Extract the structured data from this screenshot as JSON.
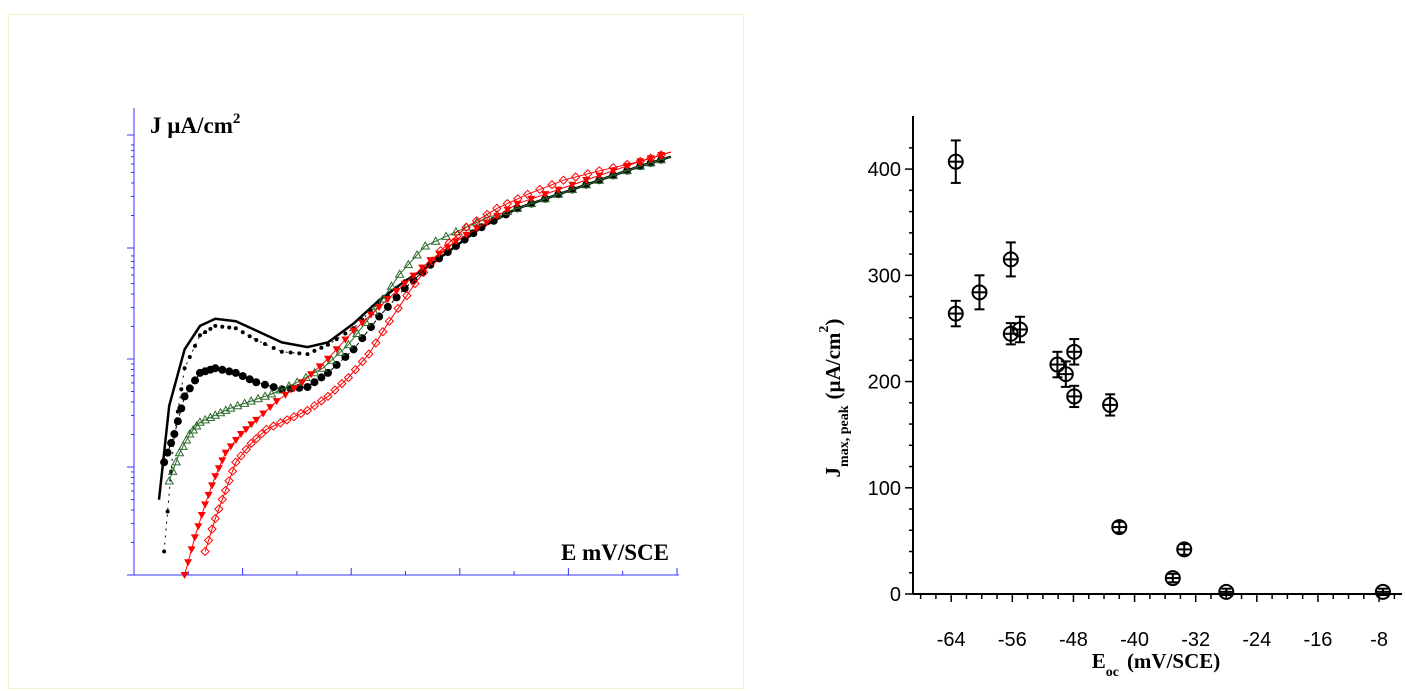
{
  "chart_data": [
    {
      "type": "line",
      "title": "",
      "ylabel_text": "J µA/cm",
      "ylabel_sup": "2",
      "xlabel": "E mV/SCE",
      "y_scale": "log",
      "tick_labels_visible": false,
      "grid": false,
      "series": [
        {
          "marker": "solid line",
          "color": "#000000",
          "x": [
            0.0,
            0.02,
            0.05,
            0.08,
            0.11,
            0.15,
            0.19,
            0.24,
            0.29,
            0.33,
            0.38,
            0.43,
            0.48,
            0.53,
            0.58,
            0.63,
            0.7,
            0.78,
            0.86,
            0.94,
            1.0
          ],
          "y": [
            0.16,
            0.36,
            0.48,
            0.53,
            0.545,
            0.54,
            0.52,
            0.495,
            0.485,
            0.495,
            0.535,
            0.585,
            0.625,
            0.66,
            0.7,
            0.74,
            0.78,
            0.81,
            0.84,
            0.87,
            0.89
          ]
        },
        {
          "marker": "small dots",
          "color": "#000000",
          "x": [
            0.01,
            0.03,
            0.05,
            0.08,
            0.11,
            0.15,
            0.19,
            0.24,
            0.29,
            0.33,
            0.38,
            0.43,
            0.48,
            0.53,
            0.58,
            0.63,
            0.7,
            0.78,
            0.86,
            0.94,
            1.0
          ],
          "y": [
            0.05,
            0.3,
            0.44,
            0.51,
            0.53,
            0.525,
            0.5,
            0.475,
            0.47,
            0.49,
            0.525,
            0.58,
            0.625,
            0.66,
            0.7,
            0.74,
            0.78,
            0.81,
            0.84,
            0.87,
            0.89
          ]
        },
        {
          "marker": "filled circle",
          "color": "#000000",
          "x": [
            0.01,
            0.03,
            0.05,
            0.08,
            0.11,
            0.15,
            0.19,
            0.24,
            0.29,
            0.33,
            0.38,
            0.43,
            0.48,
            0.53,
            0.58,
            0.63,
            0.7,
            0.78,
            0.86,
            0.94,
            1.0
          ],
          "y": [
            0.24,
            0.3,
            0.38,
            0.43,
            0.44,
            0.43,
            0.41,
            0.395,
            0.4,
            0.43,
            0.48,
            0.55,
            0.61,
            0.66,
            0.7,
            0.74,
            0.78,
            0.81,
            0.84,
            0.87,
            0.89
          ]
        },
        {
          "marker": "open triangle",
          "color": "#2d6b2d",
          "x": [
            0.02,
            0.04,
            0.06,
            0.08,
            0.11,
            0.14,
            0.18,
            0.22,
            0.27,
            0.32,
            0.37,
            0.42,
            0.47,
            0.52,
            0.58,
            0.64,
            0.7,
            0.78,
            0.86,
            0.94,
            1.0
          ],
          "y": [
            0.2,
            0.26,
            0.3,
            0.325,
            0.34,
            0.355,
            0.37,
            0.385,
            0.41,
            0.44,
            0.49,
            0.56,
            0.64,
            0.7,
            0.73,
            0.76,
            0.78,
            0.81,
            0.84,
            0.87,
            0.89
          ]
        },
        {
          "marker": "filled triangle",
          "color": "#ff0000",
          "x": [
            0.05,
            0.07,
            0.09,
            0.11,
            0.13,
            0.16,
            0.19,
            0.23,
            0.28,
            0.33,
            0.38,
            0.43,
            0.48,
            0.53,
            0.58,
            0.64,
            0.7,
            0.78,
            0.86,
            0.94,
            1.0
          ],
          "y": [
            0.0,
            0.08,
            0.15,
            0.21,
            0.26,
            0.3,
            0.33,
            0.37,
            0.41,
            0.46,
            0.52,
            0.57,
            0.62,
            0.67,
            0.71,
            0.75,
            0.79,
            0.82,
            0.85,
            0.88,
            0.9
          ]
        },
        {
          "marker": "open diamond",
          "color": "#ff0000",
          "x": [
            0.09,
            0.11,
            0.13,
            0.15,
            0.18,
            0.21,
            0.25,
            0.29,
            0.33,
            0.37,
            0.41,
            0.45,
            0.5,
            0.55,
            0.6,
            0.66,
            0.72,
            0.79,
            0.86,
            0.94,
            1.0
          ],
          "y": [
            0.05,
            0.12,
            0.18,
            0.24,
            0.28,
            0.31,
            0.33,
            0.35,
            0.38,
            0.42,
            0.47,
            0.54,
            0.62,
            0.69,
            0.74,
            0.78,
            0.81,
            0.84,
            0.86,
            0.88,
            0.9
          ]
        }
      ]
    },
    {
      "type": "scatter",
      "title": "",
      "xlabel_main": "E",
      "xlabel_sub": "oc",
      "xlabel_unit": "(mV/SCE)",
      "ylabel_main": "J",
      "ylabel_sub": "max, peak",
      "ylabel_unit": "(µA/cm",
      "ylabel_sup": "2",
      "ylabel_close": ")",
      "xlim": [
        -69,
        -5
      ],
      "ylim": [
        0,
        450
      ],
      "xticks": [
        -64,
        -56,
        -48,
        -40,
        -32,
        -24,
        -16,
        -8
      ],
      "yticks": [
        0,
        100,
        200,
        300,
        400
      ],
      "grid": false,
      "points": [
        {
          "x": -63.4,
          "y": 407,
          "err": 20
        },
        {
          "x": -63.4,
          "y": 264,
          "err": 12
        },
        {
          "x": -60.3,
          "y": 284,
          "err": 16
        },
        {
          "x": -56.2,
          "y": 315,
          "err": 16
        },
        {
          "x": -56.2,
          "y": 245,
          "err": 10
        },
        {
          "x": -55.0,
          "y": 249,
          "err": 12
        },
        {
          "x": -50.1,
          "y": 216,
          "err": 12
        },
        {
          "x": -49.0,
          "y": 207,
          "err": 12
        },
        {
          "x": -47.9,
          "y": 228,
          "err": 12
        },
        {
          "x": -47.9,
          "y": 186,
          "err": 10
        },
        {
          "x": -43.2,
          "y": 178,
          "err": 10
        },
        {
          "x": -42.0,
          "y": 63,
          "err": 5
        },
        {
          "x": -35.0,
          "y": 15,
          "err": 4
        },
        {
          "x": -33.5,
          "y": 42,
          "err": 5
        },
        {
          "x": -28.0,
          "y": 2,
          "err": 3
        },
        {
          "x": -7.5,
          "y": 2,
          "err": 3
        }
      ]
    }
  ]
}
